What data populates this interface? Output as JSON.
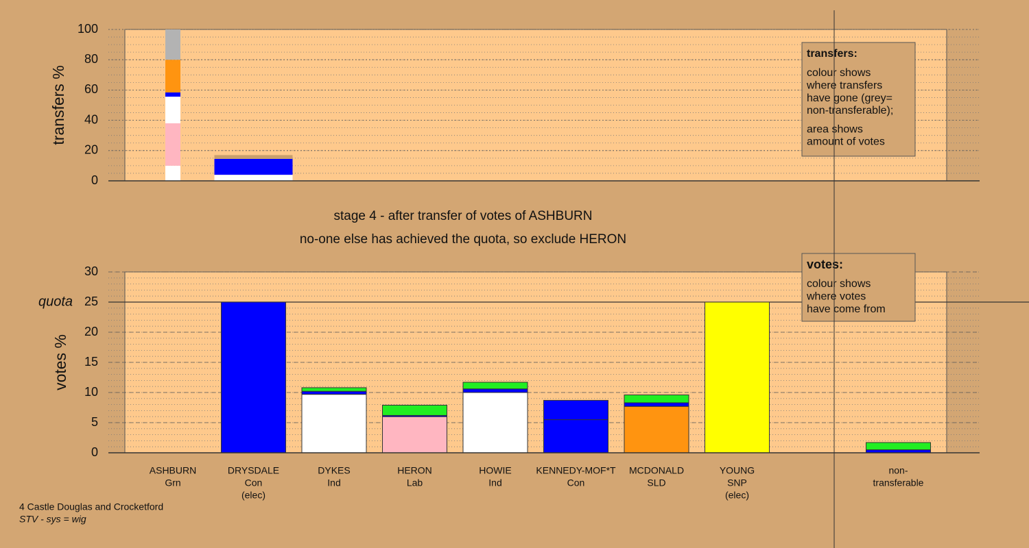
{
  "footer": {
    "place": "4 Castle Douglas and Crocketford",
    "system": "STV - sys = wig"
  },
  "chart_data": [
    {
      "type": "bar",
      "stacked": true,
      "ylabel": "transfers %",
      "ylim": [
        0,
        100
      ],
      "yticks": [
        0,
        20,
        40,
        60,
        80,
        100
      ],
      "minor_step": 5,
      "note": {
        "heading": "transfers:",
        "paragraphs": [
          [
            "colour shows",
            "where transfers",
            "have gone (grey=",
            "non-transferable);"
          ],
          [
            "area shows",
            "amount of votes"
          ]
        ]
      },
      "series": [
        {
          "color": "#ffffff",
          "values": [
            10,
            2,
            null,
            null,
            null,
            null,
            null,
            null,
            null,
            null
          ]
        },
        {
          "color": "#ffb6c1",
          "values": [
            28,
            null,
            null,
            null,
            null,
            null,
            null,
            null,
            null,
            null
          ]
        },
        {
          "color": "#ffffff",
          "values": [
            17.6,
            2,
            null,
            null,
            null,
            null,
            null,
            null,
            null,
            null
          ]
        },
        {
          "color": "#0000ff",
          "values": [
            2.8,
            10.5,
            null,
            null,
            null,
            null,
            null,
            null,
            null,
            null
          ]
        },
        {
          "color": "#ff9410",
          "values": [
            21.6,
            null,
            null,
            null,
            null,
            null,
            null,
            null,
            null,
            null
          ]
        },
        {
          "color": "#b3b3b3",
          "values": [
            20,
            null,
            null,
            null,
            null,
            null,
            null,
            null,
            null,
            null
          ]
        },
        {
          "color": "#c89f6e",
          "values": [
            null,
            2.5,
            null,
            null,
            null,
            null,
            null,
            null,
            null,
            null
          ]
        }
      ]
    },
    {
      "type": "bar",
      "stacked": true,
      "title": "stage 4 - after transfer of votes of ASHBURN",
      "subtitle": "no-one else has achieved the quota, so exclude HERON",
      "ylabel": "votes %",
      "ylim": [
        0,
        30
      ],
      "yticks": [
        0,
        5,
        10,
        15,
        20,
        25,
        30
      ],
      "minor_step": 1,
      "quota": {
        "label": "quota",
        "value": 25
      },
      "note": {
        "heading": "votes:",
        "paragraphs": [
          [
            "colour shows",
            "where votes",
            "have come from"
          ]
        ]
      },
      "categories": [
        "ASHBURN",
        "DRYSDALE",
        "DYKES",
        "HERON",
        "HOWIE",
        "KENNEDY-MOF*T",
        "MCDONALD",
        "YOUNG",
        null,
        "non-"
      ],
      "parties": [
        "Grn",
        "Con",
        "Ind",
        "Lab",
        "Ind",
        "Con",
        "SLD",
        "SNP",
        null,
        "transferable"
      ],
      "status": [
        null,
        "(elec)",
        null,
        null,
        null,
        null,
        null,
        "(elec)",
        null,
        null
      ],
      "series": [
        {
          "colors": [
            "#333333",
            "#0000ff",
            "#ffffff",
            "#ffb6c1",
            "#ffffff",
            "#0000ff",
            "#ff9410",
            "#ffff00",
            null,
            "#b3b3b3"
          ],
          "values": [
            0,
            25,
            9.7,
            6.0,
            10,
            5.5,
            7.7,
            25,
            null,
            0
          ]
        },
        {
          "color": "#0000ff",
          "values": [
            null,
            null,
            0.5,
            0.2,
            0.6,
            3.2,
            0.6,
            null,
            null,
            0.5
          ]
        },
        {
          "color": "#22ee22",
          "values": [
            null,
            null,
            0.6,
            1.7,
            1.1,
            0,
            1.3,
            null,
            null,
            1.2
          ]
        }
      ]
    }
  ]
}
